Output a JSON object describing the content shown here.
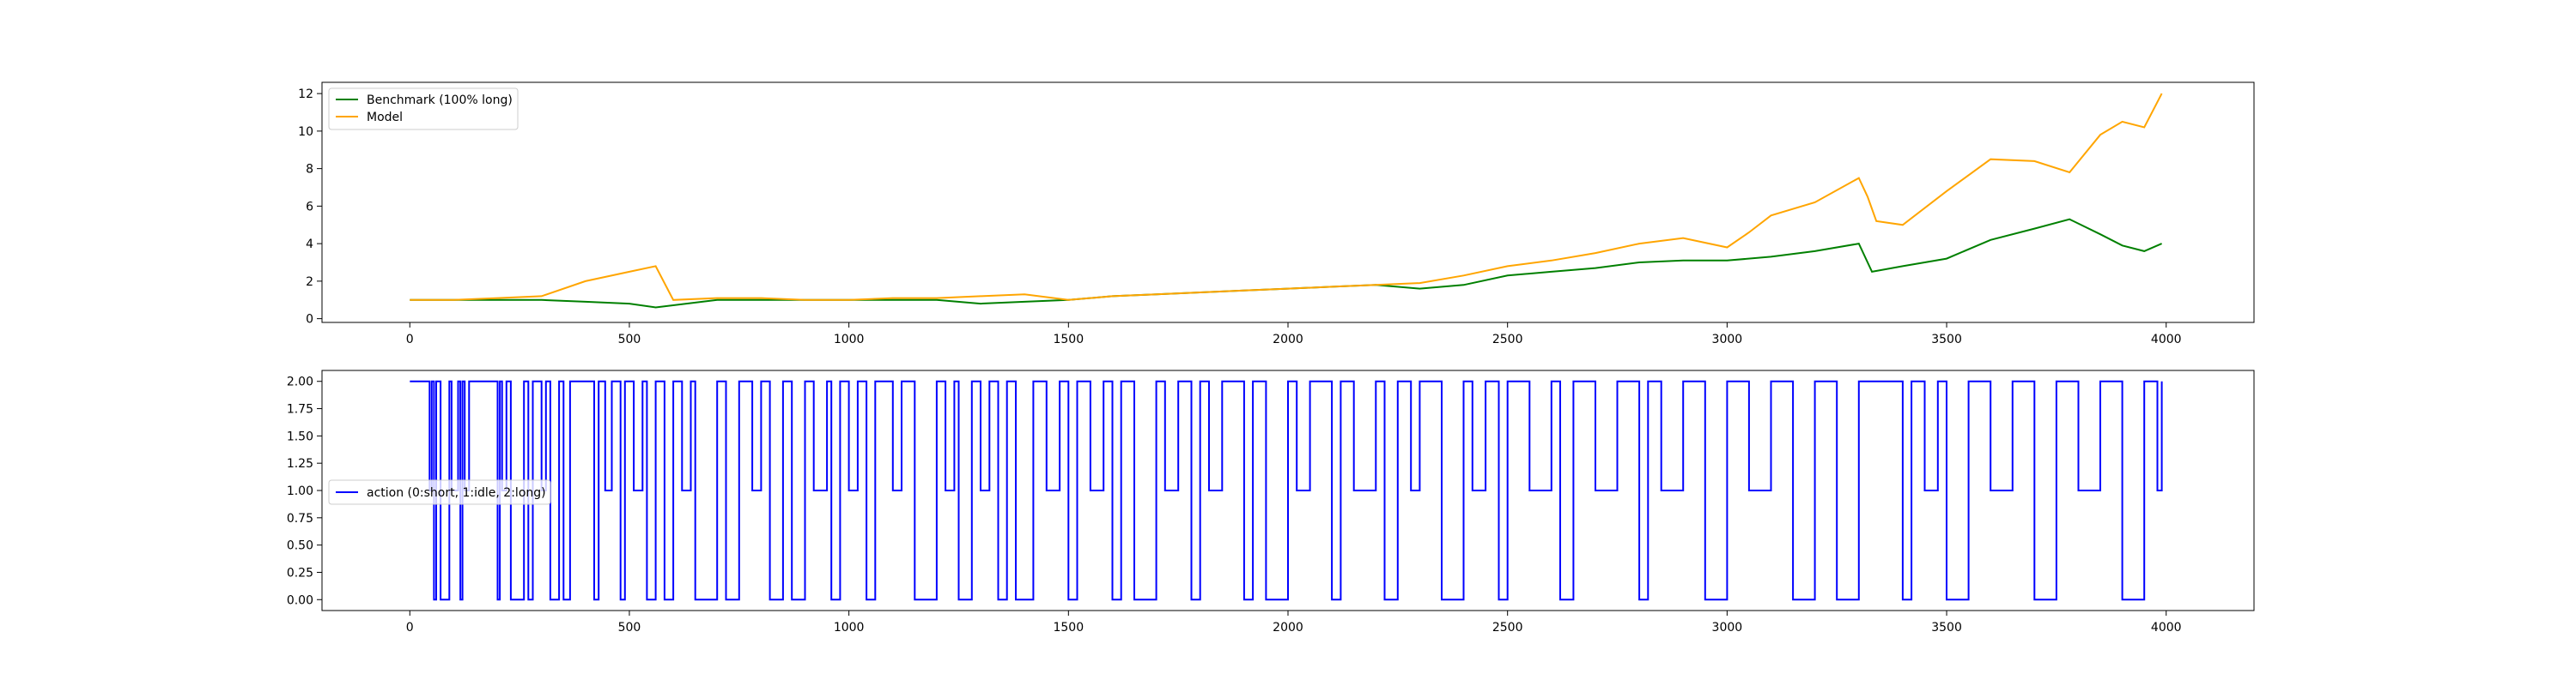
{
  "chart_data": [
    {
      "type": "line",
      "title": "",
      "xlabel": "",
      "ylabel": "",
      "xlim": [
        -200,
        4200
      ],
      "ylim": [
        -0.2,
        12.6
      ],
      "xticks": [
        0,
        500,
        1000,
        1500,
        2000,
        2500,
        3000,
        3500,
        4000
      ],
      "yticks": [
        0,
        2,
        4,
        6,
        8,
        10,
        12
      ],
      "legend": "upper-left",
      "series": [
        {
          "name": "Benchmark (100% long)",
          "color": "#008000",
          "x": [
            0,
            100,
            200,
            300,
            400,
            500,
            560,
            700,
            800,
            900,
            1000,
            1100,
            1200,
            1300,
            1400,
            1500,
            1600,
            1700,
            1800,
            1900,
            2000,
            2100,
            2200,
            2300,
            2400,
            2500,
            2600,
            2700,
            2800,
            2900,
            3000,
            3100,
            3200,
            3300,
            3330,
            3400,
            3500,
            3600,
            3700,
            3780,
            3850,
            3900,
            3950,
            3990
          ],
          "y": [
            1.0,
            1.0,
            1.0,
            1.0,
            0.9,
            0.8,
            0.6,
            1.0,
            1.0,
            1.0,
            1.0,
            1.0,
            1.0,
            0.8,
            0.9,
            1.0,
            1.2,
            1.3,
            1.4,
            1.5,
            1.6,
            1.7,
            1.8,
            1.6,
            1.8,
            2.3,
            2.5,
            2.7,
            3.0,
            3.1,
            3.1,
            3.3,
            3.6,
            4.0,
            2.5,
            2.8,
            3.2,
            4.2,
            4.8,
            5.3,
            4.5,
            3.9,
            3.6,
            4.0
          ]
        },
        {
          "name": "Model",
          "color": "#ffa500",
          "x": [
            0,
            100,
            200,
            300,
            400,
            500,
            560,
            600,
            700,
            800,
            900,
            1000,
            1100,
            1200,
            1300,
            1400,
            1500,
            1600,
            1700,
            1800,
            1900,
            2000,
            2100,
            2200,
            2300,
            2400,
            2500,
            2600,
            2700,
            2800,
            2900,
            3000,
            3050,
            3100,
            3200,
            3300,
            3320,
            3340,
            3400,
            3500,
            3600,
            3700,
            3780,
            3850,
            3900,
            3950,
            3990
          ],
          "y": [
            1.0,
            1.0,
            1.1,
            1.2,
            2.0,
            2.5,
            2.8,
            1.0,
            1.1,
            1.1,
            1.0,
            1.0,
            1.1,
            1.1,
            1.2,
            1.3,
            1.0,
            1.2,
            1.3,
            1.4,
            1.5,
            1.6,
            1.7,
            1.8,
            1.9,
            2.3,
            2.8,
            3.1,
            3.5,
            4.0,
            4.3,
            3.8,
            4.6,
            5.5,
            6.2,
            7.5,
            6.5,
            5.2,
            5.0,
            6.8,
            8.5,
            8.4,
            7.8,
            9.8,
            10.5,
            10.2,
            12.0
          ]
        }
      ]
    },
    {
      "type": "line",
      "title": "",
      "xlabel": "",
      "ylabel": "",
      "xlim": [
        -200,
        4200
      ],
      "ylim": [
        -0.1,
        2.1
      ],
      "xticks": [
        0,
        500,
        1000,
        1500,
        2000,
        2500,
        3000,
        3500,
        4000
      ],
      "yticks": [
        0.0,
        0.25,
        0.5,
        0.75,
        1.0,
        1.25,
        1.5,
        1.75,
        2.0
      ],
      "ytick_labels": [
        "0.00",
        "0.25",
        "0.50",
        "0.75",
        "1.00",
        "1.25",
        "1.50",
        "1.75",
        "2.00"
      ],
      "legend": "center-left",
      "step": true,
      "series": [
        {
          "name": "action (0:short, 1:idle, 2:long)",
          "color": "#0000ff",
          "x": [
            0,
            40,
            45,
            50,
            55,
            60,
            65,
            70,
            90,
            95,
            110,
            115,
            120,
            125,
            135,
            145,
            200,
            205,
            210,
            220,
            230,
            260,
            270,
            280,
            300,
            310,
            320,
            340,
            350,
            365,
            380,
            420,
            430,
            445,
            460,
            480,
            490,
            510,
            530,
            540,
            560,
            580,
            600,
            620,
            640,
            650,
            700,
            720,
            750,
            780,
            800,
            820,
            850,
            870,
            900,
            920,
            950,
            960,
            980,
            1000,
            1020,
            1040,
            1060,
            1100,
            1120,
            1150,
            1200,
            1220,
            1240,
            1250,
            1280,
            1300,
            1320,
            1340,
            1360,
            1380,
            1420,
            1450,
            1480,
            1500,
            1520,
            1550,
            1580,
            1600,
            1620,
            1650,
            1700,
            1720,
            1750,
            1780,
            1800,
            1820,
            1850,
            1900,
            1920,
            1950,
            2000,
            2020,
            2050,
            2100,
            2120,
            2150,
            2200,
            2220,
            2250,
            2280,
            2300,
            2350,
            2400,
            2420,
            2450,
            2480,
            2500,
            2550,
            2600,
            2620,
            2650,
            2700,
            2750,
            2800,
            2820,
            2850,
            2900,
            2950,
            3000,
            3050,
            3100,
            3150,
            3200,
            3250,
            3300,
            3380,
            3400,
            3420,
            3450,
            3480,
            3500,
            3550,
            3600,
            3650,
            3700,
            3750,
            3800,
            3850,
            3900,
            3950,
            3980,
            3990
          ],
          "y": [
            2,
            2,
            1,
            2,
            0,
            2,
            2,
            0,
            2,
            1,
            2,
            0,
            2,
            1,
            2,
            2,
            0,
            2,
            1,
            2,
            0,
            2,
            0,
            2,
            1,
            2,
            0,
            2,
            0,
            2,
            2,
            0,
            2,
            1,
            2,
            0,
            2,
            1,
            2,
            0,
            2,
            0,
            2,
            1,
            2,
            0,
            2,
            0,
            2,
            1,
            2,
            0,
            2,
            0,
            2,
            1,
            2,
            0,
            2,
            1,
            2,
            0,
            2,
            1,
            2,
            0,
            2,
            1,
            2,
            0,
            2,
            1,
            2,
            0,
            2,
            0,
            2,
            1,
            2,
            0,
            2,
            1,
            2,
            0,
            2,
            0,
            2,
            1,
            2,
            0,
            2,
            1,
            2,
            0,
            2,
            0,
            2,
            1,
            2,
            0,
            2,
            1,
            2,
            0,
            2,
            1,
            2,
            0,
            2,
            1,
            2,
            0,
            2,
            1,
            2,
            0,
            2,
            1,
            2,
            0,
            2,
            1,
            2,
            0,
            2,
            1,
            2,
            0,
            2,
            0,
            2,
            2,
            0,
            2,
            1,
            2,
            0,
            2,
            1,
            2,
            0,
            2,
            1,
            2,
            0,
            2,
            1,
            2
          ]
        }
      ]
    }
  ]
}
